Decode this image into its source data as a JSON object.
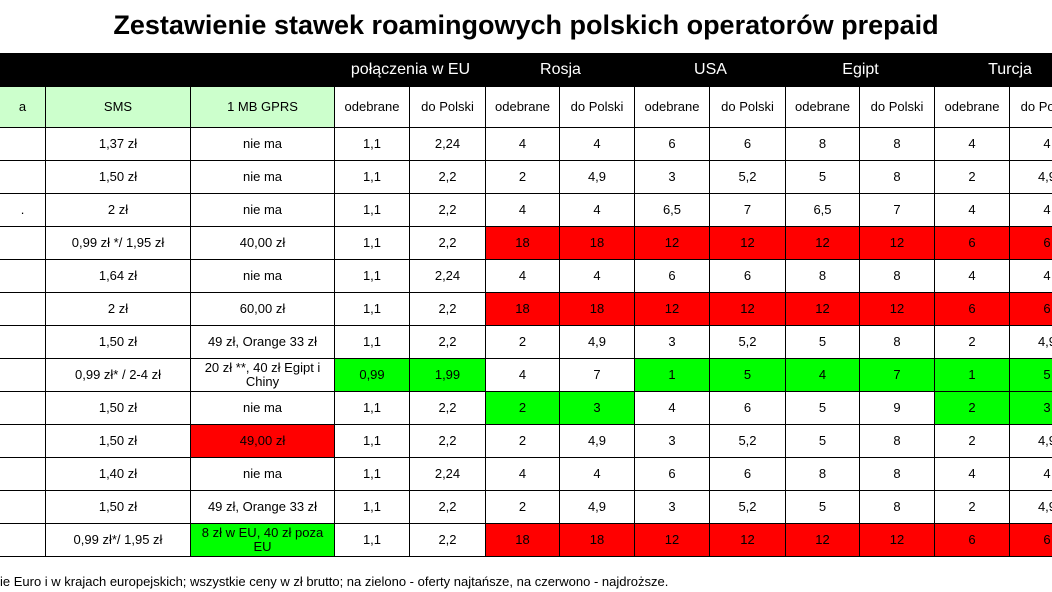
{
  "title": "Zestawienie stawek roamingowych polskich operatorów prepaid",
  "header": {
    "groups": [
      "połączenia w EU",
      "Rosja",
      "USA",
      "Egipt",
      "Turcja"
    ]
  },
  "subheader": [
    "a",
    "SMS",
    "1 MB GPRS",
    "odebrane",
    "do Polski",
    "odebrane",
    "do Polski",
    "odebrane",
    "do Polski",
    "odebrane",
    "do Polski",
    "odebrane",
    "do Polski"
  ],
  "subheader_fills": [
    "#ccffcc",
    "#ccffcc",
    "#ccffcc",
    null,
    null,
    null,
    null,
    null,
    null,
    null,
    null,
    null,
    null
  ],
  "rows": [
    {
      "cells": [
        null,
        "1,37 zł",
        "nie ma",
        "1,1",
        "2,24",
        "4",
        "4",
        "6",
        "6",
        "8",
        "8",
        "4",
        "4"
      ]
    },
    {
      "cells": [
        null,
        "1,50 zł",
        "nie ma",
        "1,1",
        "2,2",
        "2",
        "4,9",
        "3",
        "5,2",
        "5",
        "8",
        "2",
        "4,9"
      ]
    },
    {
      "cells": [
        ".",
        "2 zł",
        "nie ma",
        "1,1",
        "2,2",
        "4",
        "4",
        "6,5",
        "7",
        "6,5",
        "7",
        "4",
        "4"
      ]
    },
    {
      "cells": [
        null,
        "0,99 zł */ 1,95 zł",
        "40,00 zł",
        "1,1",
        "2,2",
        "18",
        "18",
        "12",
        "12",
        "12",
        "12",
        "6",
        "6"
      ],
      "fills": [
        null,
        null,
        null,
        null,
        null,
        "#ff0000",
        "#ff0000",
        "#ff0000",
        "#ff0000",
        "#ff0000",
        "#ff0000",
        "#ff0000",
        "#ff0000"
      ]
    },
    {
      "cells": [
        null,
        "1,64 zł",
        "nie ma",
        "1,1",
        "2,24",
        "4",
        "4",
        "6",
        "6",
        "8",
        "8",
        "4",
        "4"
      ]
    },
    {
      "cells": [
        null,
        "2 zł",
        "60,00 zł",
        "1,1",
        "2,2",
        "18",
        "18",
        "12",
        "12",
        "12",
        "12",
        "6",
        "6"
      ],
      "fills": [
        null,
        null,
        null,
        null,
        null,
        "#ff0000",
        "#ff0000",
        "#ff0000",
        "#ff0000",
        "#ff0000",
        "#ff0000",
        "#ff0000",
        "#ff0000"
      ]
    },
    {
      "cells": [
        null,
        "1,50 zł",
        "49 zł, Orange 33 zł",
        "1,1",
        "2,2",
        "2",
        "4,9",
        "3",
        "5,2",
        "5",
        "8",
        "2",
        "4,9"
      ]
    },
    {
      "cells": [
        null,
        "0,99 zł* / 2-4 zł",
        "20 zł **, 40 zł Egipt i Chiny",
        "0,99",
        "1,99",
        "4",
        "7",
        "1",
        "5",
        "4",
        "7",
        "1",
        "5"
      ],
      "fills": [
        null,
        null,
        null,
        "#00ff00",
        "#00ff00",
        null,
        null,
        "#00ff00",
        "#00ff00",
        "#00ff00",
        "#00ff00",
        "#00ff00",
        "#00ff00"
      ]
    },
    {
      "cells": [
        null,
        "1,50 zł",
        "nie ma",
        "1,1",
        "2,2",
        "2",
        "3",
        "4",
        "6",
        "5",
        "9",
        "2",
        "3"
      ],
      "fills": [
        null,
        null,
        null,
        null,
        null,
        "#00ff00",
        "#00ff00",
        null,
        null,
        null,
        null,
        "#00ff00",
        "#00ff00"
      ]
    },
    {
      "cells": [
        null,
        "1,50 zł",
        "49,00 zł",
        "1,1",
        "2,2",
        "2",
        "4,9",
        "3",
        "5,2",
        "5",
        "8",
        "2",
        "4,9"
      ],
      "fills": [
        null,
        null,
        "#ff0000",
        null,
        null,
        null,
        null,
        null,
        null,
        null,
        null,
        null,
        null
      ]
    },
    {
      "cells": [
        null,
        "1,40 zł",
        "nie ma",
        "1,1",
        "2,24",
        "4",
        "4",
        "6",
        "6",
        "8",
        "8",
        "4",
        "4"
      ]
    },
    {
      "cells": [
        null,
        "1,50 zł",
        "49 zł, Orange 33 zł",
        "1,1",
        "2,2",
        "2",
        "4,9",
        "3",
        "5,2",
        "5",
        "8",
        "2",
        "4,9"
      ]
    },
    {
      "cells": [
        null,
        "0,99 zł*/ 1,95 zł",
        "8 zł w EU, 40 zł poza EU",
        "1,1",
        "2,2",
        "18",
        "18",
        "12",
        "12",
        "12",
        "12",
        "6",
        "6"
      ],
      "fills": [
        null,
        null,
        "#00ff00",
        null,
        null,
        "#ff0000",
        "#ff0000",
        "#ff0000",
        "#ff0000",
        "#ff0000",
        "#ff0000",
        "#ff0000",
        "#ff0000"
      ]
    }
  ],
  "footer": "ie Euro i w krajach europejskich; wszystkie ceny w zł brutto; na zielono - oferty najtańsze, na czerwono - najdroższe."
}
